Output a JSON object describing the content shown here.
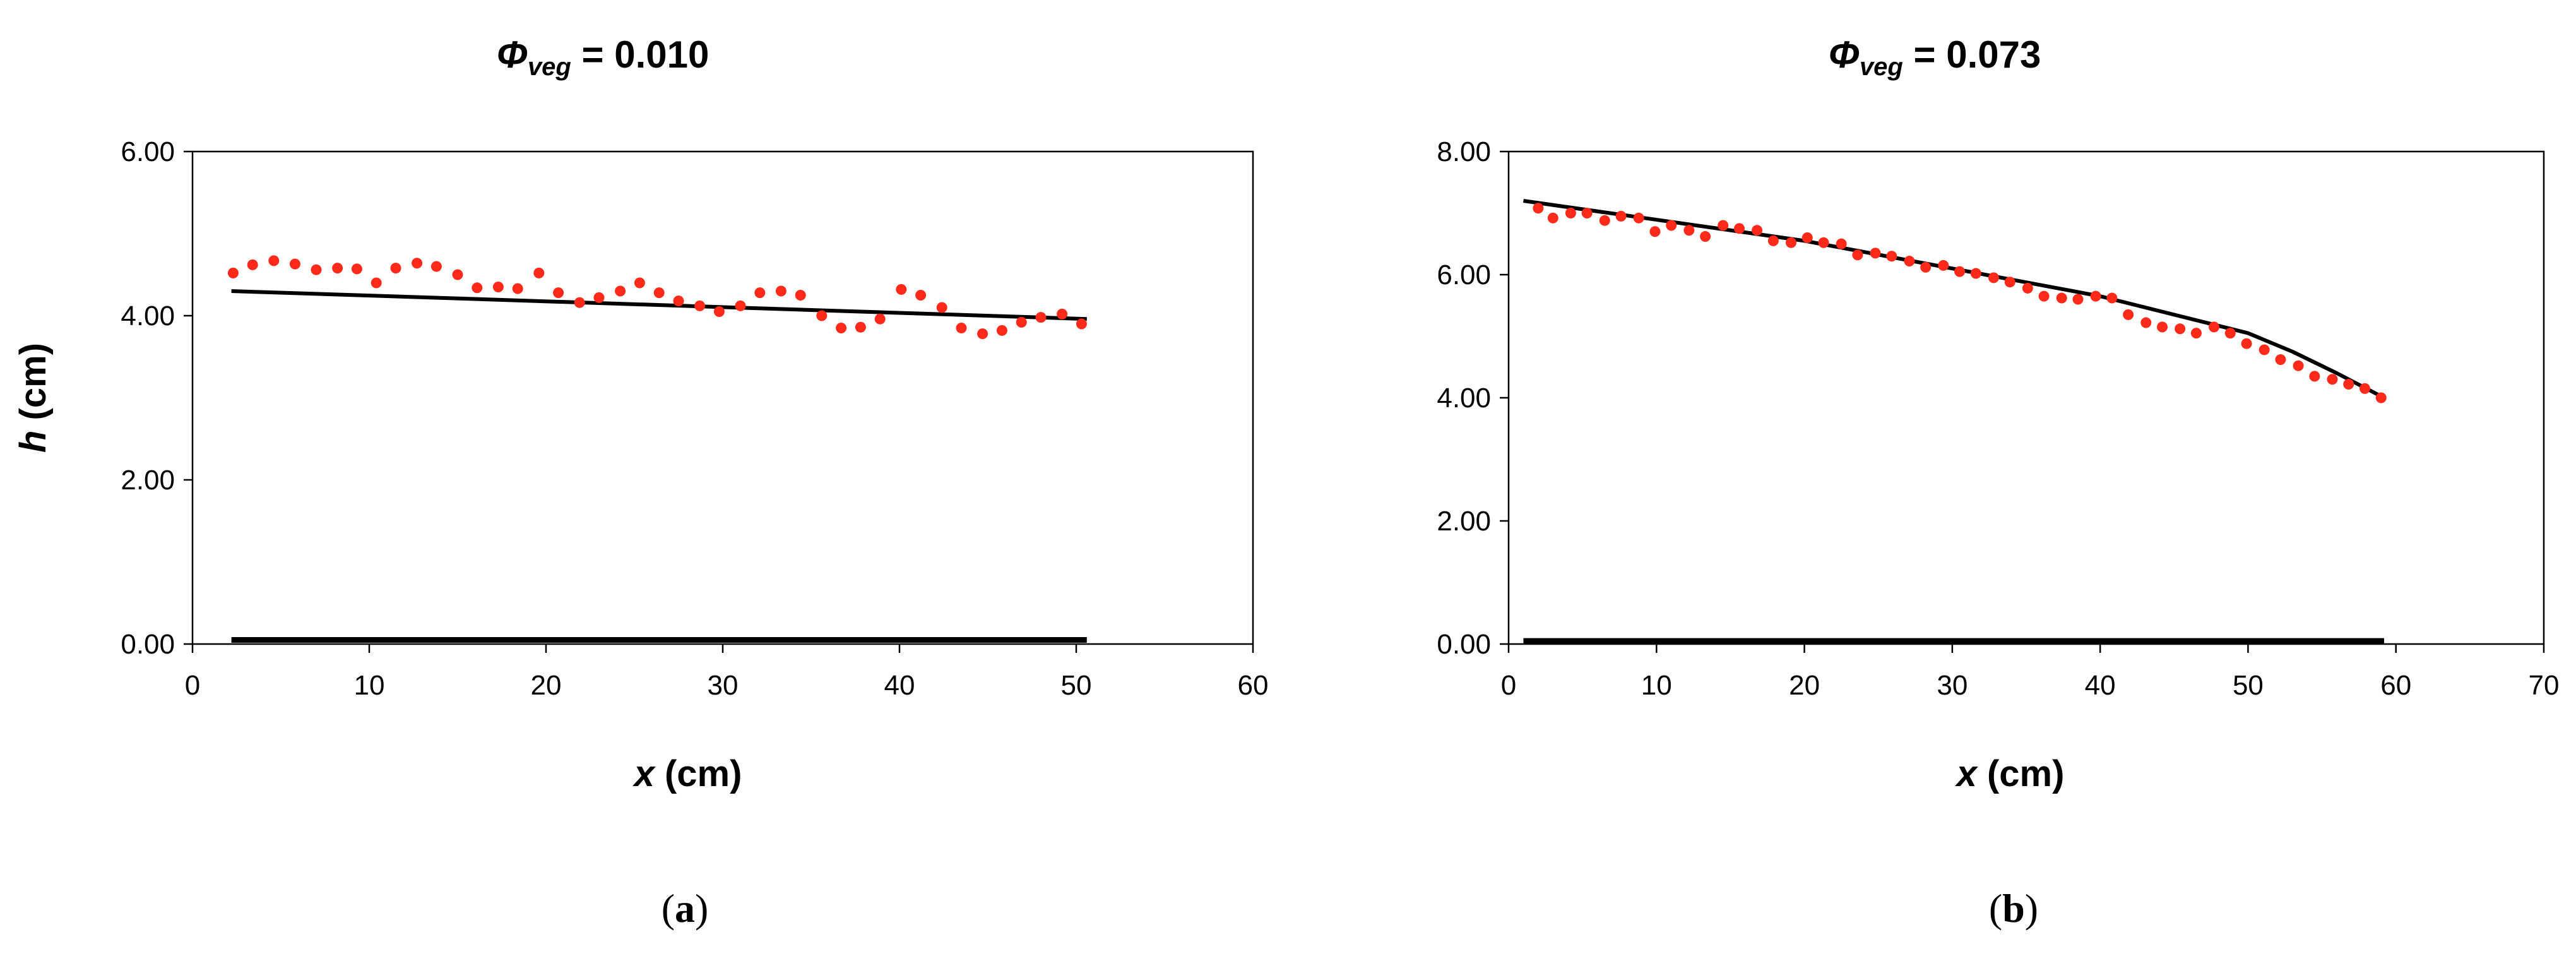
{
  "chart_data": [
    {
      "type": "scatter",
      "title": {
        "symbol": "Φ",
        "subscript": "veg",
        "rest": " = 0.010"
      },
      "xlabel": {
        "var": "x",
        "rest": " (cm)"
      },
      "ylabel": {
        "var": "h",
        "rest": " (cm)"
      },
      "xlim": [
        0,
        60
      ],
      "ylim": [
        0,
        6
      ],
      "xticks": [
        "0",
        "10",
        "20",
        "30",
        "40",
        "50",
        "60"
      ],
      "yticks": [
        "0.00",
        "2.00",
        "4.00",
        "6.00"
      ],
      "caption": {
        "open": "(",
        "letter": "a",
        "close": ")"
      },
      "grid": false,
      "colors": {
        "points": "#ff2a1a",
        "line": "#000000",
        "bed": "#000000"
      },
      "series": [
        {
          "type": "scatter",
          "x": [
            2.3,
            3.4,
            4.6,
            5.8,
            7.0,
            8.2,
            9.3,
            10.4,
            11.5,
            12.7,
            13.8,
            15.0,
            16.1,
            17.3,
            18.4,
            19.6,
            20.7,
            21.9,
            23.0,
            24.2,
            25.3,
            26.4,
            27.5,
            28.7,
            29.8,
            31.0,
            32.1,
            33.3,
            34.4,
            35.6,
            36.7,
            37.8,
            38.9,
            40.1,
            41.2,
            42.4,
            43.5,
            44.7,
            45.8,
            46.9,
            48.0,
            49.2,
            50.3
          ],
          "y": [
            4.52,
            4.62,
            4.67,
            4.63,
            4.56,
            4.58,
            4.57,
            4.4,
            4.58,
            4.64,
            4.6,
            4.5,
            4.34,
            4.35,
            4.33,
            4.52,
            4.28,
            4.16,
            4.22,
            4.3,
            4.4,
            4.28,
            4.18,
            4.12,
            4.05,
            4.12,
            4.28,
            4.3,
            4.25,
            4.0,
            3.85,
            3.86,
            3.96,
            4.32,
            4.25,
            4.1,
            3.85,
            3.78,
            3.82,
            3.92,
            3.98,
            4.02,
            3.9
          ]
        },
        {
          "type": "line",
          "x": [
            2.2,
            50.6
          ],
          "y": [
            4.3,
            3.96
          ]
        },
        {
          "type": "bed",
          "x": [
            2.2,
            50.6
          ],
          "y": [
            0.05,
            0.05
          ]
        }
      ]
    },
    {
      "type": "scatter",
      "title": {
        "symbol": "Φ",
        "subscript": "veg",
        "rest": " = 0.073"
      },
      "xlabel": {
        "var": "x",
        "rest": " (cm)"
      },
      "ylabel": {
        "var": "",
        "rest": ""
      },
      "xlim": [
        0,
        70
      ],
      "ylim": [
        0,
        8
      ],
      "xticks": [
        "0",
        "10",
        "20",
        "30",
        "40",
        "50",
        "60",
        "70"
      ],
      "yticks": [
        "0.00",
        "2.00",
        "4.00",
        "6.00",
        "8.00"
      ],
      "caption": {
        "open": "(",
        "letter": "b",
        "close": ")"
      },
      "grid": false,
      "colors": {
        "points": "#ff2a1a",
        "line": "#000000",
        "bed": "#000000"
      },
      "series": [
        {
          "type": "scatter",
          "x": [
            2.0,
            3.0,
            4.2,
            5.3,
            6.5,
            7.6,
            8.8,
            9.9,
            11.0,
            12.2,
            13.3,
            14.5,
            15.6,
            16.8,
            17.9,
            19.1,
            20.2,
            21.3,
            22.5,
            23.6,
            24.8,
            25.9,
            27.1,
            28.2,
            29.4,
            30.5,
            31.6,
            32.8,
            33.9,
            35.1,
            36.2,
            37.4,
            38.5,
            39.7,
            40.8,
            41.9,
            43.1,
            44.2,
            45.4,
            46.5,
            47.7,
            48.8,
            49.9,
            51.1,
            52.2,
            53.4,
            54.5,
            55.7,
            56.8,
            57.9,
            59.0
          ],
          "y": [
            7.08,
            6.92,
            7.0,
            7.0,
            6.88,
            6.95,
            6.92,
            6.7,
            6.8,
            6.72,
            6.62,
            6.8,
            6.75,
            6.72,
            6.55,
            6.52,
            6.6,
            6.52,
            6.5,
            6.32,
            6.35,
            6.3,
            6.22,
            6.12,
            6.15,
            6.05,
            6.02,
            5.95,
            5.88,
            5.78,
            5.65,
            5.62,
            5.6,
            5.65,
            5.62,
            5.35,
            5.22,
            5.15,
            5.12,
            5.05,
            5.15,
            5.05,
            4.88,
            4.78,
            4.62,
            4.52,
            4.35,
            4.3,
            4.22,
            4.15,
            4.0
          ]
        },
        {
          "type": "line",
          "x": [
            1.0,
            20.0,
            40.0,
            50.0,
            53.0,
            56.0,
            59.2
          ],
          "y": [
            7.2,
            6.55,
            5.65,
            5.05,
            4.75,
            4.4,
            4.0
          ]
        },
        {
          "type": "bed",
          "x": [
            1.0,
            59.2
          ],
          "y": [
            0.05,
            0.05
          ]
        }
      ]
    }
  ]
}
